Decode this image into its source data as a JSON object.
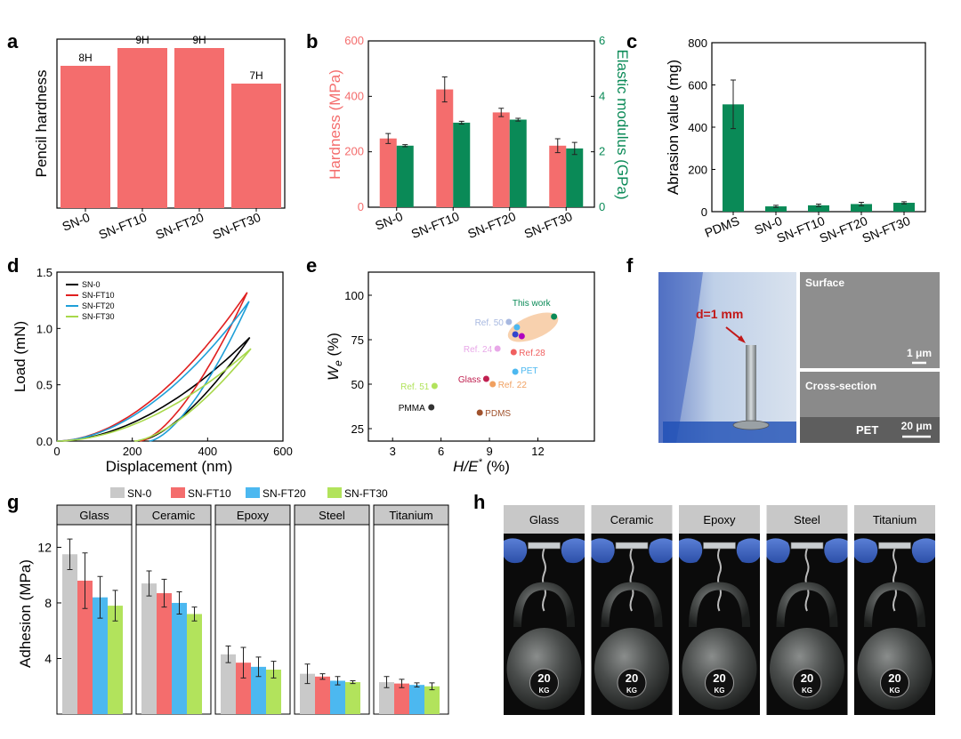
{
  "panels": {
    "a": "a",
    "b": "b",
    "c": "c",
    "d": "d",
    "e": "e",
    "f": "f",
    "g": "g",
    "h": "h"
  },
  "colors": {
    "red": "#f46d6d",
    "green": "#0a8a57",
    "gray": "#c9c9c9",
    "blue": "#4cb8f0",
    "lime": "#b2e35c",
    "black": "#000000",
    "panel_header": "#c8c8c8"
  },
  "chart_data": [
    {
      "id": "a",
      "type": "bar",
      "categories": [
        "SN-0",
        "SN-FT10",
        "SN-FT20",
        "SN-FT30"
      ],
      "values": [
        8,
        9,
        9,
        7
      ],
      "data_labels": [
        "8H",
        "9H",
        "9H",
        "7H"
      ],
      "ylabel": "Pencil hardness",
      "ylim": [
        0,
        9.5
      ],
      "color": "#f46d6d"
    },
    {
      "id": "b",
      "type": "bar",
      "categories": [
        "SN-0",
        "SN-FT10",
        "SN-FT20",
        "SN-FT30"
      ],
      "series": [
        {
          "axis": "left",
          "values": [
            248,
            425,
            342,
            222
          ],
          "errors": [
            18,
            45,
            15,
            25
          ],
          "color": "#f46d6d"
        },
        {
          "axis": "right",
          "values": [
            2.22,
            3.05,
            3.16,
            2.12
          ],
          "errors": [
            0.04,
            0.05,
            0.05,
            0.22
          ],
          "color": "#0a8a57"
        }
      ],
      "ylabel_left": "Hardness (MPa)",
      "ylabel_right": "Elastic modulus (GPa)",
      "ylim_left": [
        0,
        600
      ],
      "ylim_right": [
        0,
        6
      ],
      "yticks_left": [
        "0",
        "200",
        "400",
        "600"
      ],
      "yticks_right": [
        "0",
        "2",
        "4",
        "6"
      ]
    },
    {
      "id": "c",
      "type": "bar",
      "categories": [
        "PDMS",
        "SN-0",
        "SN-FT10",
        "SN-FT20",
        "SN-FT30"
      ],
      "values": [
        508,
        25,
        30,
        36,
        42
      ],
      "errors": [
        115,
        5,
        6,
        8,
        5
      ],
      "ylabel": "Abrasion value (mg)",
      "ylim": [
        0,
        800
      ],
      "yticks": [
        "0",
        "200",
        "400",
        "600",
        "800"
      ],
      "color": "#0a8a57"
    },
    {
      "id": "d",
      "type": "line",
      "xlabel": "Displacement (nm)",
      "ylabel": "Load (mN)",
      "xlim": [
        0,
        600
      ],
      "ylim": [
        0,
        1.5
      ],
      "xticks": [
        "0",
        "200",
        "400",
        "600"
      ],
      "yticks": [
        "0.0",
        "0.5",
        "1.0",
        "1.5"
      ],
      "series": [
        {
          "name": "SN-0",
          "color": "#000000",
          "max_disp": 512,
          "max_load": 0.92,
          "final_disp": 215
        },
        {
          "name": "SN-FT10",
          "color": "#e02020",
          "max_disp": 505,
          "max_load": 1.32,
          "final_disp": 220
        },
        {
          "name": "SN-FT20",
          "color": "#1f9fd8",
          "max_disp": 510,
          "max_load": 1.24,
          "final_disp": 245
        },
        {
          "name": "SN-FT30",
          "color": "#a8d84a",
          "max_disp": 515,
          "max_load": 0.82,
          "final_disp": 205
        }
      ]
    },
    {
      "id": "e",
      "type": "scatter",
      "xlabel_main": "H/E",
      "xlabel_sup": "*",
      "xlabel_unit": " (%)",
      "ylabel_main": "W",
      "ylabel_sub": "e",
      "ylabel_unit": " (%)",
      "xlim": [
        1.5,
        15.5
      ],
      "ylim": [
        18,
        113
      ],
      "xticks": [
        "3",
        "6",
        "9",
        "12"
      ],
      "yticks": [
        "25",
        "50",
        "75",
        "100"
      ],
      "points": [
        {
          "label": "This work",
          "x": 13.0,
          "y": 88,
          "color": "#0a8a57"
        },
        {
          "label": "Ref. 50",
          "x": 10.2,
          "y": 85,
          "color": "#a7b8e0"
        },
        {
          "label": "",
          "x": 10.7,
          "y": 82,
          "color": "#4cb8f0"
        },
        {
          "label": "",
          "x": 10.6,
          "y": 78,
          "color": "#3344cc"
        },
        {
          "label": "",
          "x": 11.0,
          "y": 77,
          "color": "#b000c0"
        },
        {
          "label": "Ref. 24",
          "x": 9.5,
          "y": 70,
          "color": "#e8a8e8"
        },
        {
          "label": "Ref.28",
          "x": 10.5,
          "y": 68,
          "color": "#f06060"
        },
        {
          "label": "PET",
          "x": 10.6,
          "y": 57,
          "color": "#4cb8f0"
        },
        {
          "label": "Glass",
          "x": 8.8,
          "y": 53,
          "color": "#c02050"
        },
        {
          "label": "Ref. 22",
          "x": 9.2,
          "y": 50,
          "color": "#f0a060"
        },
        {
          "label": "Ref. 51",
          "x": 5.6,
          "y": 49,
          "color": "#b2e35c"
        },
        {
          "label": "PMMA",
          "x": 5.4,
          "y": 37,
          "color": "#333333"
        },
        {
          "label": "PDMS",
          "x": 8.4,
          "y": 34,
          "color": "#a0522d"
        }
      ],
      "highlight_color": "#f7c9a0"
    },
    {
      "id": "g",
      "type": "bar",
      "ylabel": "Adhesion (MPa)",
      "ylim": [
        0,
        13.5
      ],
      "yticks": [
        "4",
        "8",
        "12"
      ],
      "substrates": [
        "Glass",
        "Ceramic",
        "Epoxy",
        "Steel",
        "Titanium"
      ],
      "series_names": [
        "SN-0",
        "SN-FT10",
        "SN-FT20",
        "SN-FT30"
      ],
      "series_colors": [
        "#c9c9c9",
        "#f46d6d",
        "#4cb8f0",
        "#b2e35c"
      ],
      "values": [
        [
          11.5,
          9.6,
          8.4,
          7.8
        ],
        [
          9.4,
          8.7,
          8.0,
          7.2
        ],
        [
          4.3,
          3.7,
          3.4,
          3.2
        ],
        [
          2.9,
          2.7,
          2.4,
          2.3
        ],
        [
          2.3,
          2.2,
          2.1,
          2.0
        ]
      ],
      "errors": [
        [
          1.1,
          2.0,
          1.5,
          1.1
        ],
        [
          0.9,
          1.0,
          0.8,
          0.5
        ],
        [
          0.6,
          1.1,
          0.7,
          0.6
        ],
        [
          0.7,
          0.2,
          0.3,
          0.1
        ],
        [
          0.4,
          0.3,
          0.15,
          0.25
        ]
      ]
    }
  ],
  "photo_f": {
    "annotation": "d=1 mm",
    "surface_label": "Surface",
    "surface_scale": "1 μm",
    "cross_label": "Cross-section",
    "cross_layer": "PET",
    "cross_scale": "20 μm"
  },
  "photo_h": {
    "substrates": [
      "Glass",
      "Ceramic",
      "Epoxy",
      "Steel",
      "Titanium"
    ],
    "weight_top": "20",
    "weight_bottom": "KG"
  }
}
